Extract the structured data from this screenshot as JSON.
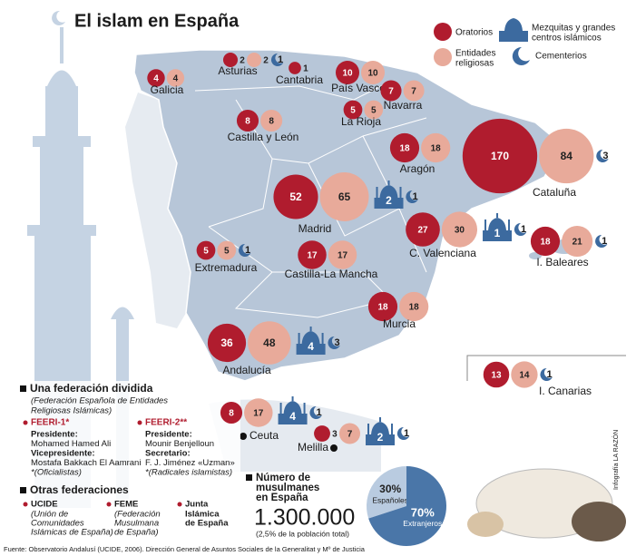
{
  "title": "El islam en España",
  "colors": {
    "oratorios": "#b01c2e",
    "entidades": "#e8aa9a",
    "mezquitas": "#3c6a9f",
    "cementerios": "#3c6a9f"
  },
  "legend": {
    "oratorios": "Oratorios",
    "entidades": [
      "Entidades",
      "religiosas"
    ],
    "mezquitas": [
      "Mezquitas y grandes",
      "centros islámicos"
    ],
    "cementerios": "Cementerios"
  },
  "regions": [
    {
      "name": "Asturias",
      "oratorios": 2,
      "entidades": 2,
      "mezquitas": null,
      "cementerios": 1
    },
    {
      "name": "Galicia",
      "oratorios": 4,
      "entidades": 4,
      "mezquitas": null,
      "cementerios": null
    },
    {
      "name": "Cantabria",
      "oratorios": 1,
      "entidades": null,
      "mezquitas": null,
      "cementerios": null
    },
    {
      "name": "País Vasco",
      "oratorios": 10,
      "entidades": 10,
      "mezquitas": null,
      "cementerios": null
    },
    {
      "name": "Navarra",
      "oratorios": 7,
      "entidades": 7,
      "mezquitas": null,
      "cementerios": null
    },
    {
      "name": "La Rioja",
      "oratorios": 5,
      "entidades": 5,
      "mezquitas": null,
      "cementerios": null
    },
    {
      "name": "Castilla y León",
      "oratorios": 8,
      "entidades": 8,
      "mezquitas": null,
      "cementerios": null
    },
    {
      "name": "Aragón",
      "oratorios": 18,
      "entidades": 18,
      "mezquitas": null,
      "cementerios": null
    },
    {
      "name": "Cataluña",
      "oratorios": 170,
      "entidades": 84,
      "mezquitas": null,
      "cementerios": 3
    },
    {
      "name": "Madrid",
      "oratorios": 52,
      "entidades": 65,
      "mezquitas": 2,
      "cementerios": 1
    },
    {
      "name": "C. Valenciana",
      "oratorios": 27,
      "entidades": 30,
      "mezquitas": 1,
      "cementerios": 1
    },
    {
      "name": "I. Baleares",
      "oratorios": 18,
      "entidades": 21,
      "mezquitas": null,
      "cementerios": 1
    },
    {
      "name": "Extremadura",
      "oratorios": 5,
      "entidades": 5,
      "mezquitas": null,
      "cementerios": 1
    },
    {
      "name": "Castilla-La Mancha",
      "oratorios": 17,
      "entidades": 17,
      "mezquitas": null,
      "cementerios": null
    },
    {
      "name": "Murcia",
      "oratorios": 18,
      "entidades": 18,
      "mezquitas": null,
      "cementerios": null
    },
    {
      "name": "Andalucía",
      "oratorios": 36,
      "entidades": 48,
      "mezquitas": 4,
      "cementerios": 3
    },
    {
      "name": "I. Canarias",
      "oratorios": 13,
      "entidades": 14,
      "mezquitas": null,
      "cementerios": 1
    },
    {
      "name": "Ceuta",
      "oratorios": 8,
      "entidades": 17,
      "mezquitas": 4,
      "cementerios": 1
    },
    {
      "name": "Melilla",
      "oratorios": 3,
      "entidades": 7,
      "mezquitas": 2,
      "cementerios": 1
    }
  ],
  "federacion": {
    "title": "Una federación dividida",
    "subtitle": [
      "(Federación Española de Entidades",
      "Religiosas Islámicas)"
    ],
    "groups": [
      {
        "name": "FEERI-1*",
        "lines": [
          "Presidente:",
          "Mohamed Hamed Ali",
          "Vicepresidente:",
          "Mostafa Bakkach El Aamrani",
          "*(Oficialistas)"
        ]
      },
      {
        "name": "FEERI-2**",
        "lines": [
          "Presidente:",
          "Mounir Benjelloun",
          "Secretario:",
          "F. J. Jiménez «Uzman»",
          "*(Radicales islamistas)"
        ]
      }
    ]
  },
  "otras": {
    "title": "Otras federaciones",
    "items": [
      {
        "name": "UCIDE",
        "lines": [
          "(Unión de",
          "Comunidades",
          "Islámicas de España)"
        ]
      },
      {
        "name": "FEME",
        "lines": [
          "(Federación",
          "Musulmana",
          "de España)"
        ]
      },
      {
        "name": "Junta",
        "lines": [
          "Islámica",
          "de España"
        ]
      }
    ]
  },
  "musulmanes": {
    "title": [
      "Número de",
      "musulmanes",
      "en España"
    ],
    "total": "1.300.000",
    "note": "(2,5% de la población total)",
    "pie": {
      "type": "pie",
      "categories": [
        "Españoles",
        "Extranjeros"
      ],
      "values": [
        30,
        70
      ],
      "value_labels": [
        "30%",
        "70%"
      ],
      "colors": [
        "#b9cbe0",
        "#4a76a8"
      ]
    }
  },
  "source": "Fuente: Observatorio Andalusí (UCIDE, 2006). Dirección General de Asuntos Sociales de la Generalitat y Mº de Justicia",
  "credit": "Infografía LA RAZÓN"
}
